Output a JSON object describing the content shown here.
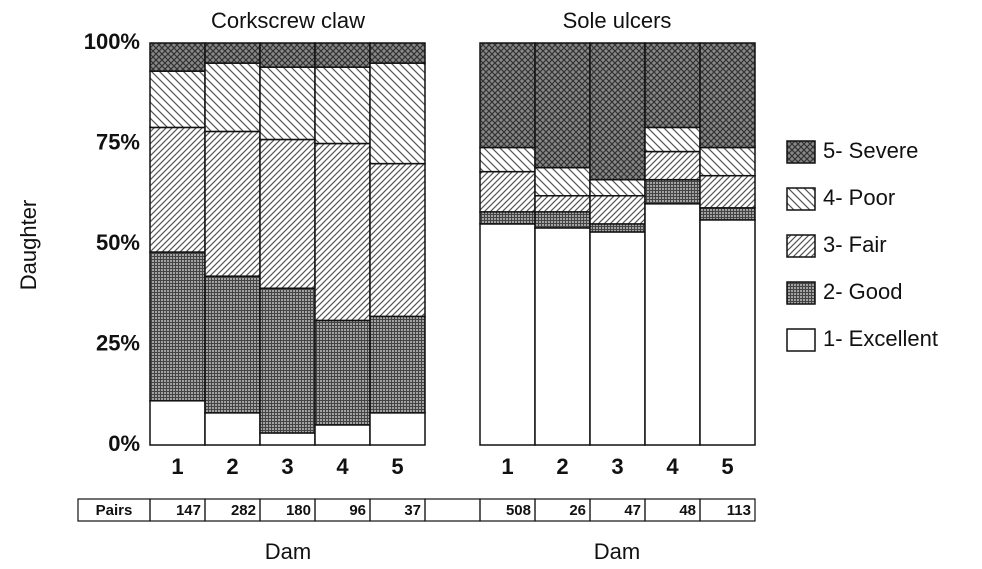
{
  "chart_data": [
    {
      "type": "stacked_bar",
      "title": "Corkscrew claw",
      "y_label": "Daughter",
      "x_label": "Dam",
      "categories": [
        "1",
        "2",
        "3",
        "4",
        "5"
      ],
      "ylim": [
        0,
        100
      ],
      "yticks": [
        {
          "value": 0,
          "label": "0%"
        },
        {
          "value": 25,
          "label": "25%"
        },
        {
          "value": 50,
          "label": "50%"
        },
        {
          "value": 75,
          "label": "75%"
        },
        {
          "value": 100,
          "label": "100%"
        }
      ],
      "pairs_label": "Pairs",
      "pairs": [
        147,
        282,
        180,
        96,
        37
      ],
      "series": [
        {
          "color": "#ffffff",
          "pattern": "none",
          "values": [
            11,
            8,
            3,
            5,
            8
          ]
        },
        {
          "color": "#444444",
          "pattern": "grid",
          "values": [
            37,
            34,
            36,
            26,
            24
          ]
        },
        {
          "color": "#555555",
          "pattern": "slash",
          "values": [
            31,
            36,
            37,
            44,
            38
          ]
        },
        {
          "color": "#555555",
          "pattern": "backslash",
          "values": [
            14,
            17,
            18,
            19,
            25
          ]
        },
        {
          "color": "#333333",
          "pattern": "cross",
          "values": [
            7,
            5,
            6,
            6,
            5
          ]
        }
      ]
    },
    {
      "type": "stacked_bar",
      "title": "Sole ulcers",
      "x_label": "Dam",
      "categories": [
        "1",
        "2",
        "3",
        "4",
        "5"
      ],
      "ylim": [
        0,
        100
      ],
      "pairs": [
        508,
        26,
        47,
        48,
        113
      ],
      "legend": "right",
      "series": [
        {
          "name": "1- Excellent",
          "color": "#ffffff",
          "pattern": "none",
          "values": [
            55,
            54,
            53,
            60,
            56
          ]
        },
        {
          "name": "2- Good",
          "color": "#444444",
          "pattern": "grid",
          "values": [
            3,
            4,
            2,
            6,
            3
          ]
        },
        {
          "name": "3- Fair",
          "color": "#555555",
          "pattern": "slash",
          "values": [
            10,
            4,
            7,
            7,
            8
          ]
        },
        {
          "name": "4- Poor",
          "color": "#555555",
          "pattern": "backslash",
          "values": [
            6,
            7,
            4,
            6,
            7
          ]
        },
        {
          "name": "5- Severe",
          "color": "#333333",
          "pattern": "cross",
          "values": [
            26,
            31,
            34,
            21,
            26
          ]
        }
      ]
    }
  ]
}
